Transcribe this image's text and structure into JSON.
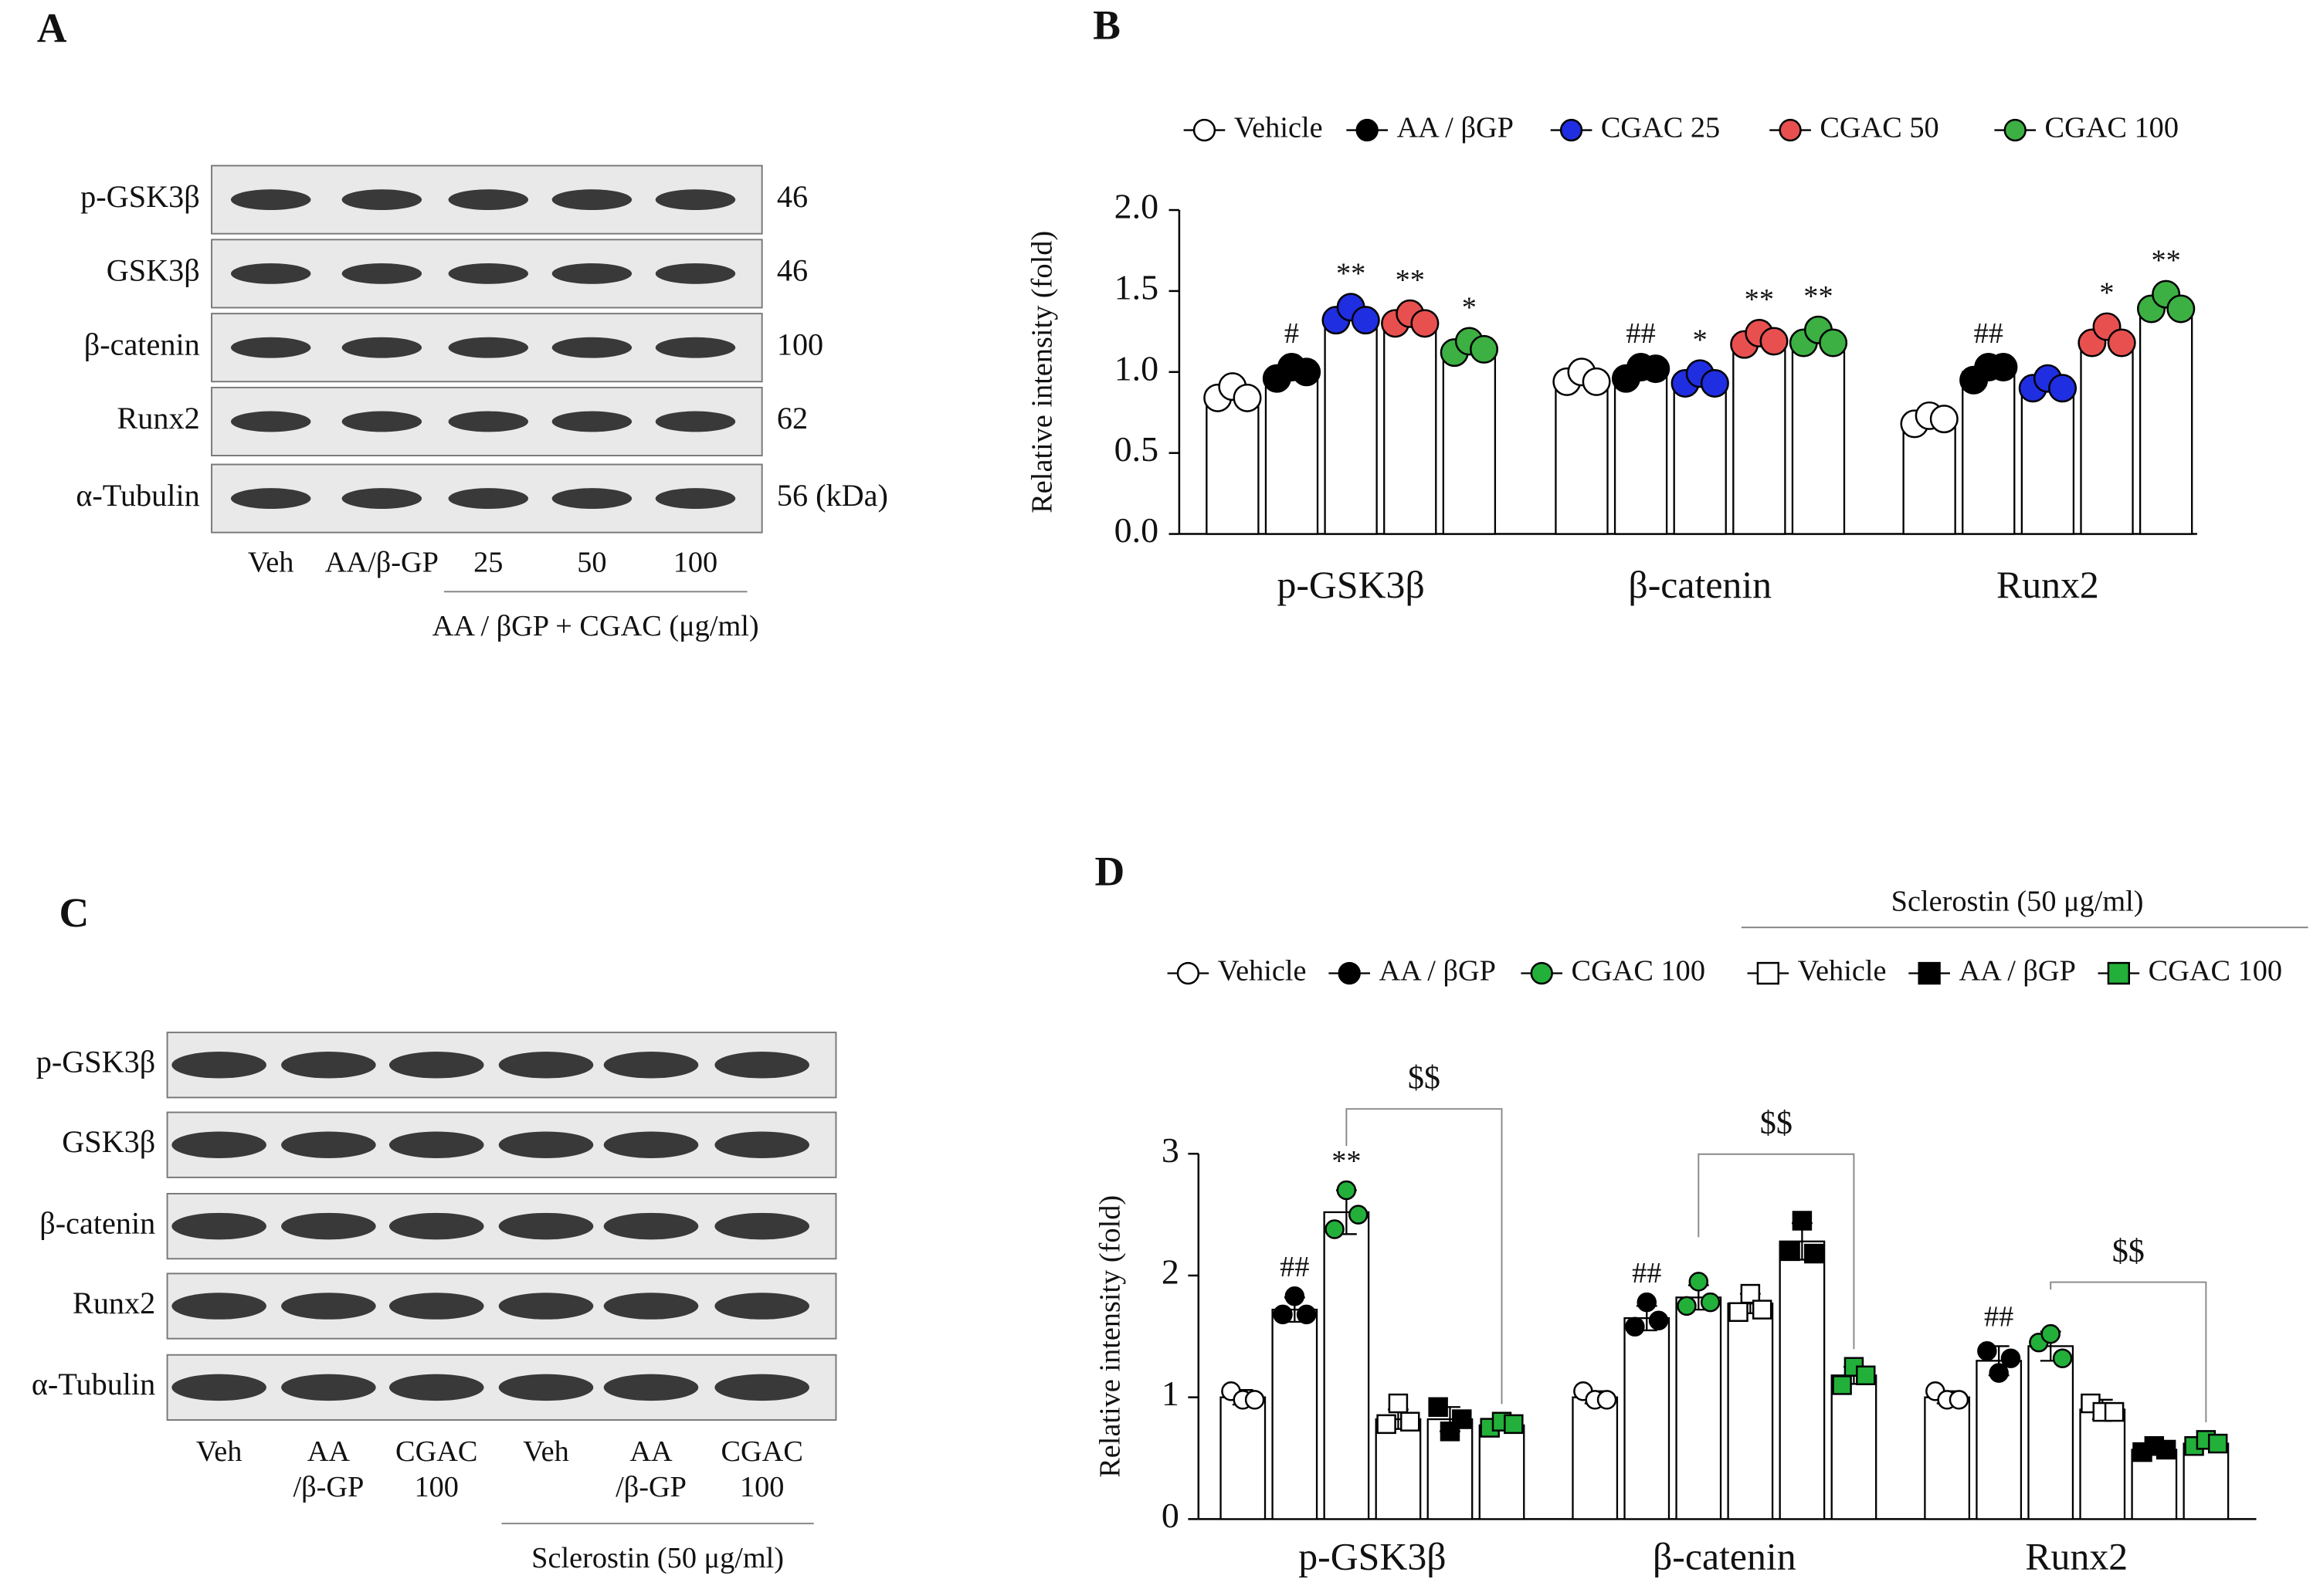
{
  "chart_data": [
    {
      "type": "bar",
      "panel": "B",
      "y_label": "Relative intensity (fold)",
      "categories": [
        "p-GSK3β",
        "β-catenin",
        "Runx2"
      ],
      "ylim": [
        0,
        2
      ],
      "yticks": [
        {
          "value": 0,
          "label": "0.0"
        },
        0.5,
        {
          "value": 1,
          "label": "1.0"
        },
        1.5,
        {
          "value": 2,
          "label": "2.0"
        }
      ],
      "series": [
        {
          "name": "Vehicle",
          "color": "#ffffff",
          "marker": "circle",
          "values": [
            0.86,
            0.96,
            0.71
          ],
          "points": [
            [
              0.84,
              0.91,
              0.84
            ],
            [
              0.94,
              1.0,
              0.94
            ],
            [
              0.68,
              0.73,
              0.71
            ]
          ],
          "annotations": [
            null,
            null,
            null
          ]
        },
        {
          "name": "AA / βGP",
          "color": "#000000",
          "marker": "circle",
          "values": [
            1.0,
            1.0,
            1.0
          ],
          "points": [
            [
              0.96,
              1.03,
              1.0
            ],
            [
              0.96,
              1.03,
              1.02
            ],
            [
              0.95,
              1.03,
              1.03
            ]
          ],
          "annotations": [
            "#",
            "##",
            "##"
          ]
        },
        {
          "name": "CGAC 25",
          "color": "#1f2ee0",
          "marker": "circle",
          "values": [
            1.35,
            0.95,
            0.92
          ],
          "points": [
            [
              1.32,
              1.4,
              1.32
            ],
            [
              0.93,
              0.99,
              0.93
            ],
            [
              0.9,
              0.96,
              0.9
            ]
          ],
          "annotations": [
            "**",
            "*",
            null
          ]
        },
        {
          "name": "CGAC 50",
          "color": "#e8504f",
          "marker": "circle",
          "values": [
            1.32,
            1.2,
            1.21
          ],
          "points": [
            [
              1.3,
              1.36,
              1.3
            ],
            [
              1.17,
              1.24,
              1.19
            ],
            [
              1.18,
              1.28,
              1.18
            ]
          ],
          "annotations": [
            "**",
            "**",
            "*"
          ]
        },
        {
          "name": "CGAC 100",
          "color": "#3cb043",
          "marker": "circle",
          "values": [
            1.15,
            1.2,
            1.42
          ],
          "points": [
            [
              1.12,
              1.19,
              1.14
            ],
            [
              1.18,
              1.26,
              1.18
            ],
            [
              1.39,
              1.48,
              1.39
            ]
          ],
          "annotations": [
            "*",
            "**",
            "**"
          ]
        }
      ]
    },
    {
      "type": "bar",
      "panel": "D",
      "y_label": "Relative intensity (fold)",
      "legend_group_label": "Sclerostin (50 μg/ml)",
      "categories": [
        "p-GSK3β",
        "β-catenin",
        "Runx2"
      ],
      "ylim": [
        0,
        3
      ],
      "yticks": [
        0,
        1,
        2,
        3
      ],
      "brackets": [
        "$$",
        "$$",
        "$$"
      ],
      "series": [
        {
          "name": "Vehicle",
          "color": "#ffffff",
          "marker": "circle",
          "values": [
            1.0,
            1.0,
            1.0
          ],
          "errors": [
            0.06,
            0.05,
            0.05
          ],
          "points": [
            [
              1.05,
              0.98,
              0.98
            ],
            [
              1.05,
              0.98,
              0.98
            ],
            [
              1.05,
              0.98,
              0.98
            ]
          ],
          "annotations": [
            null,
            null,
            null
          ]
        },
        {
          "name": "AA / βGP",
          "color": "#000000",
          "marker": "circle",
          "values": [
            1.72,
            1.65,
            1.3
          ],
          "errors": [
            0.1,
            0.1,
            0.12
          ],
          "points": [
            [
              1.68,
              1.83,
              1.68
            ],
            [
              1.58,
              1.78,
              1.63
            ],
            [
              1.38,
              1.2,
              1.32
            ]
          ],
          "annotations": [
            "##",
            "##",
            "##"
          ]
        },
        {
          "name": "CGAC 100",
          "color": "#22b03a",
          "marker": "circle",
          "values": [
            2.52,
            1.82,
            1.42
          ],
          "errors": [
            0.18,
            0.1,
            0.12
          ],
          "points": [
            [
              2.38,
              2.7,
              2.5
            ],
            [
              1.75,
              1.95,
              1.78
            ],
            [
              1.45,
              1.52,
              1.32
            ]
          ],
          "annotations": [
            "**",
            null,
            null
          ]
        },
        {
          "name": "Vehicle",
          "color": "#ffffff",
          "marker": "square",
          "values": [
            0.82,
            1.77,
            0.9
          ],
          "errors": [
            0.08,
            0.08,
            0.08
          ],
          "points": [
            [
              0.78,
              0.95,
              0.8
            ],
            [
              1.7,
              1.85,
              1.72
            ],
            [
              0.95,
              0.88,
              0.88
            ]
          ],
          "annotations": [
            null,
            null,
            null
          ]
        },
        {
          "name": "AA / βGP",
          "color": "#000000",
          "marker": "square",
          "values": [
            0.82,
            2.28,
            0.57
          ],
          "errors": [
            0.1,
            0.15,
            0.03
          ],
          "points": [
            [
              0.92,
              0.72,
              0.82
            ],
            [
              2.2,
              2.45,
              2.18
            ],
            [
              0.55,
              0.6,
              0.57
            ]
          ],
          "annotations": [
            null,
            null,
            null
          ]
        },
        {
          "name": "CGAC 100",
          "color": "#22b03a",
          "marker": "square",
          "values": [
            0.77,
            1.18,
            0.62
          ],
          "errors": [
            0.03,
            0.07,
            0.03
          ],
          "points": [
            [
              0.75,
              0.8,
              0.78
            ],
            [
              1.1,
              1.25,
              1.18
            ],
            [
              0.6,
              0.65,
              0.62
            ]
          ],
          "annotations": [
            null,
            null,
            null
          ]
        }
      ]
    }
  ],
  "blots": [
    {
      "panel": "A",
      "rows": [
        "p-GSK3β",
        "GSK3β",
        "β-catenin",
        "Runx2",
        "α-Tubulin"
      ],
      "sizes": [
        "46",
        "46",
        "100",
        "62",
        "56 (kDa)"
      ],
      "lanes": [
        [
          "Veh"
        ],
        [
          "AA/β-GP"
        ],
        [
          "25"
        ],
        [
          "50"
        ],
        [
          "100"
        ]
      ],
      "caption": "AA / βGP + CGAC (μg/ml)"
    },
    {
      "panel": "C",
      "rows": [
        "p-GSK3β",
        "GSK3β",
        "β-catenin",
        "Runx2",
        "α-Tubulin"
      ],
      "lanes": [
        [
          "Veh"
        ],
        [
          "AA",
          "/β-GP"
        ],
        [
          "CGAC",
          "100"
        ],
        [
          "Veh"
        ],
        [
          "AA",
          "/β-GP"
        ],
        [
          "CGAC",
          "100"
        ]
      ],
      "caption": "Sclerostin (50 μg/ml)"
    }
  ]
}
